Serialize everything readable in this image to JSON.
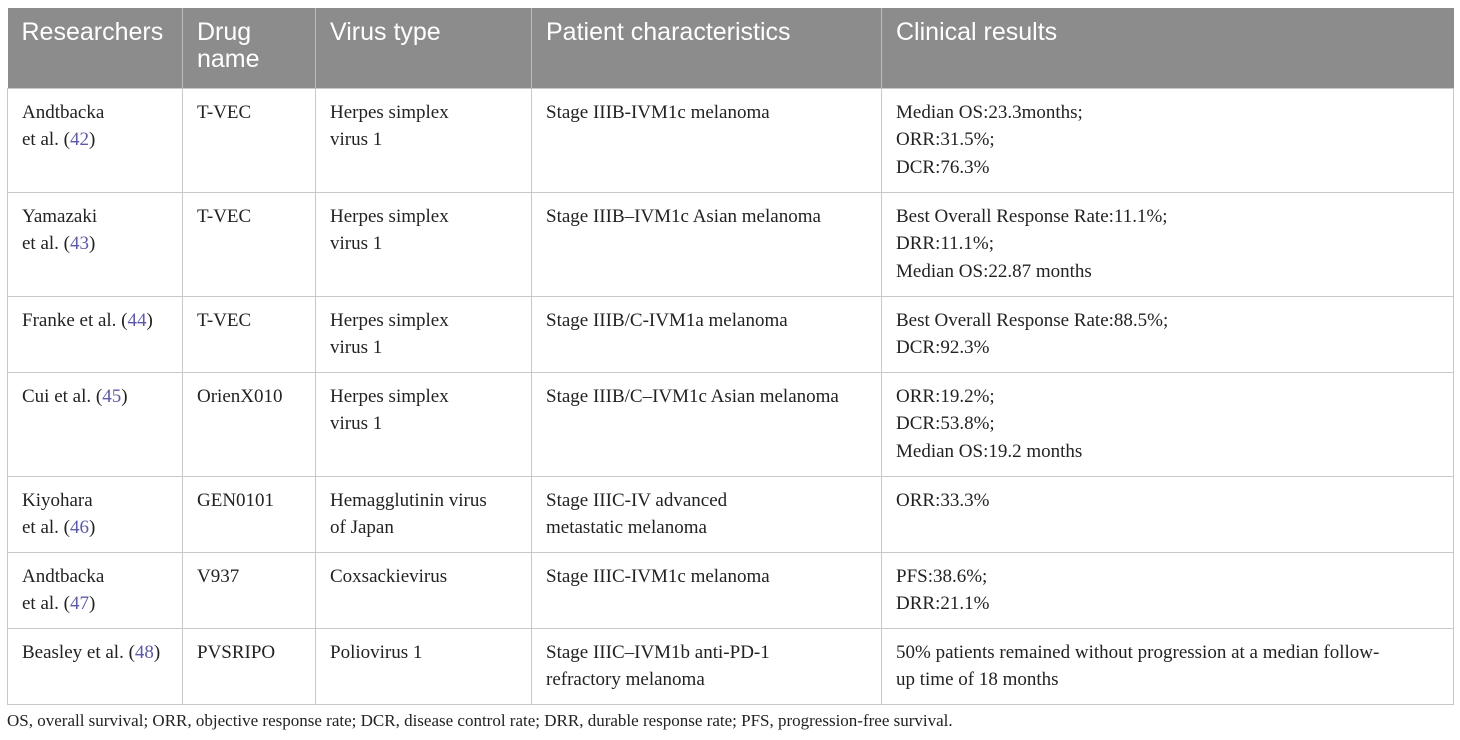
{
  "table": {
    "headers": [
      "Researchers",
      "Drug name",
      "Virus type",
      "Patient characteristics",
      "Clinical results"
    ],
    "rows": [
      {
        "researchers_lines": [
          "Andtbacka",
          "et al. ("
        ],
        "ref": "42",
        "drug": "T-VEC",
        "virus_lines": [
          "Herpes simplex",
          "virus 1"
        ],
        "patient_lines": [
          "Stage IIIB-IVM1c melanoma"
        ],
        "results_lines": [
          "Median OS:23.3months;",
          "ORR:31.5%;",
          "DCR:76.3%"
        ]
      },
      {
        "researchers_lines": [
          "Yamazaki",
          "et al. ("
        ],
        "ref": "43",
        "drug": "T-VEC",
        "virus_lines": [
          "Herpes simplex",
          "virus 1"
        ],
        "patient_lines": [
          "Stage IIIB–IVM1c Asian melanoma"
        ],
        "results_lines": [
          "Best Overall Response Rate:11.1%;",
          "DRR:11.1%;",
          "Median OS:22.87 months"
        ]
      },
      {
        "researchers_lines": [
          "Franke et al. ("
        ],
        "ref": "44",
        "drug": "T-VEC",
        "virus_lines": [
          "Herpes simplex",
          "virus 1"
        ],
        "patient_lines": [
          "Stage IIIB/C-IVM1a melanoma"
        ],
        "results_lines": [
          "Best Overall Response Rate:88.5%;",
          "DCR:92.3%"
        ]
      },
      {
        "researchers_lines": [
          "Cui et al. ("
        ],
        "ref": "45",
        "drug": "OrienX010",
        "virus_lines": [
          "Herpes simplex",
          "virus 1"
        ],
        "patient_lines": [
          "Stage IIIB/C–IVM1c Asian melanoma"
        ],
        "results_lines": [
          "ORR:19.2%;",
          "DCR:53.8%;",
          "Median OS:19.2 months"
        ]
      },
      {
        "researchers_lines": [
          "Kiyohara",
          "et al. ("
        ],
        "ref": "46",
        "drug": "GEN0101",
        "virus_lines": [
          "Hemagglutinin virus",
          "of Japan"
        ],
        "patient_lines": [
          "Stage IIIC-IV advanced",
          "metastatic melanoma"
        ],
        "results_lines": [
          "ORR:33.3%"
        ]
      },
      {
        "researchers_lines": [
          "Andtbacka",
          "et al. ("
        ],
        "ref": "47",
        "drug": "V937",
        "virus_lines": [
          "Coxsackievirus"
        ],
        "patient_lines": [
          "Stage IIIC-IVM1c melanoma"
        ],
        "results_lines": [
          "PFS:38.6%;",
          "DRR:21.1%"
        ]
      },
      {
        "researchers_lines": [
          "Beasley et al. ("
        ],
        "ref": "48",
        "drug": "PVSRIPO",
        "virus_lines": [
          "Poliovirus 1"
        ],
        "patient_lines": [
          "Stage IIIC–IVM1b anti-PD-1",
          "refractory melanoma"
        ],
        "results_lines": [
          "50% patients remained without progression at a median follow-",
          "up time of 18 months"
        ]
      }
    ]
  },
  "footnote": "OS, overall survival; ORR, objective response rate; DCR, disease control rate; DRR, durable response rate; PFS, progression-free survival.",
  "colors": {
    "header_bg": "#8c8c8c",
    "header_text": "#ffffff",
    "ref_link": "#5a5aa8",
    "border": "#c8c8c8"
  }
}
